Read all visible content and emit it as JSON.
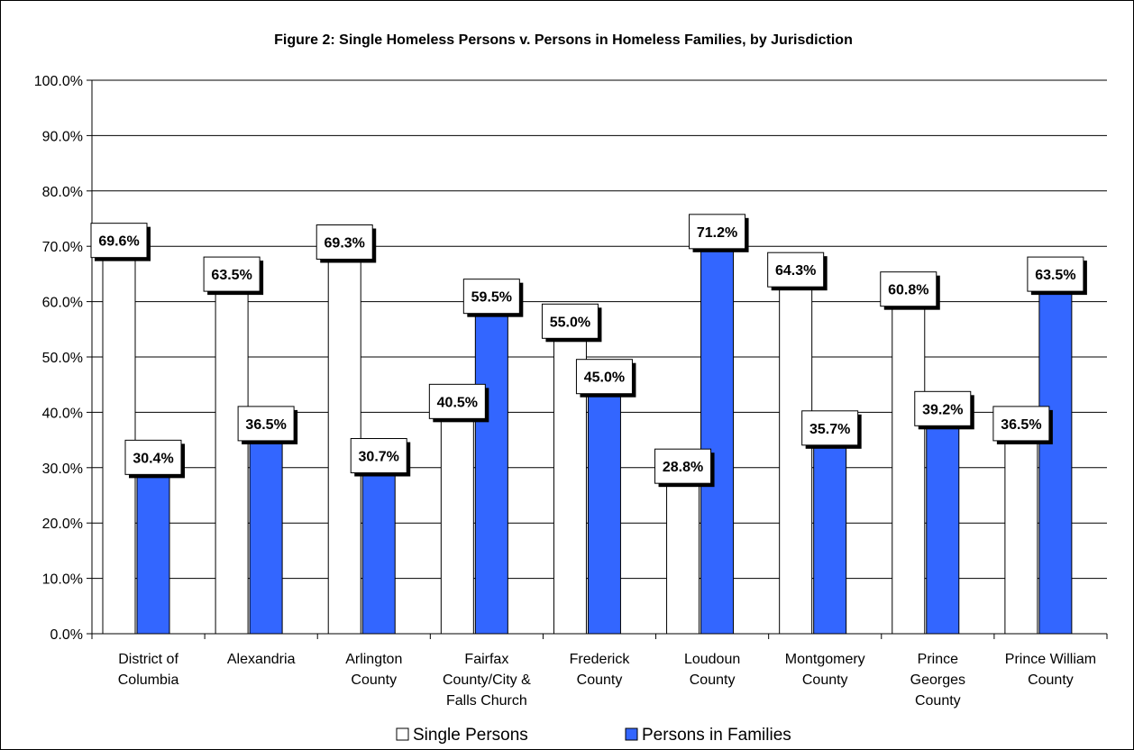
{
  "chart_data": {
    "type": "bar",
    "title": "Figure 2: Single Homeless Persons v. Persons in Homeless Families, by Jurisdiction",
    "xlabel": "",
    "ylabel": "",
    "ylim": [
      0,
      100
    ],
    "ytick_step": 10,
    "ytick_labels": [
      "0.0%",
      "10.0%",
      "20.0%",
      "30.0%",
      "40.0%",
      "50.0%",
      "60.0%",
      "70.0%",
      "80.0%",
      "90.0%",
      "100.0%"
    ],
    "grid": true,
    "legend_position": "bottom",
    "categories": [
      [
        "District of",
        "Columbia"
      ],
      [
        "Alexandria"
      ],
      [
        "Arlington",
        "County"
      ],
      [
        "Fairfax",
        "County/City &",
        "Falls Church"
      ],
      [
        "Frederick",
        "County"
      ],
      [
        "Loudoun",
        "County"
      ],
      [
        "Montgomery",
        "County"
      ],
      [
        "Prince",
        "Georges",
        "County"
      ],
      [
        "Prince William",
        "County"
      ]
    ],
    "series": [
      {
        "name": "Single Persons",
        "color": "#ffffff",
        "values": [
          69.6,
          63.5,
          69.3,
          40.5,
          55.0,
          28.8,
          64.3,
          60.8,
          36.5
        ],
        "labels": [
          "69.6%",
          "63.5%",
          "69.3%",
          "40.5%",
          "55.0%",
          "28.8%",
          "64.3%",
          "60.8%",
          "36.5%"
        ]
      },
      {
        "name": "Persons in Families",
        "color": "#3366ff",
        "values": [
          30.4,
          36.5,
          30.7,
          59.5,
          45.0,
          71.2,
          35.7,
          39.2,
          63.5
        ],
        "labels": [
          "30.4%",
          "36.5%",
          "30.7%",
          "59.5%",
          "45.0%",
          "71.2%",
          "35.7%",
          "39.2%",
          "63.5%"
        ]
      }
    ]
  }
}
